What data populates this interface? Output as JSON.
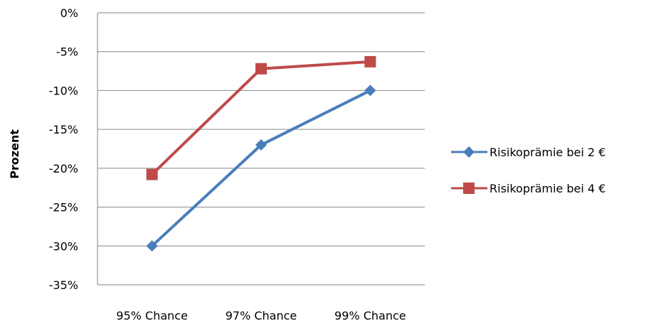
{
  "chart_data": {
    "type": "line",
    "categories": [
      "95% Chance",
      "97% Chance",
      "99% Chance"
    ],
    "series": [
      {
        "name": "Risikoprämie bei 2 €",
        "values": [
          -30,
          -17,
          -10
        ],
        "color": "#4a7ebb",
        "marker": "diamond"
      },
      {
        "name": "Risikoprämie bei 4 €",
        "values": [
          -20.8,
          -7.2,
          -6.3
        ],
        "color": "#be4b48",
        "marker": "square"
      }
    ],
    "ylabel": "Prozent",
    "ylim": [
      -35,
      0
    ],
    "yticks": [
      0,
      -5,
      -10,
      -15,
      -20,
      -25,
      -30,
      -35
    ],
    "ytick_labels": [
      "0%",
      "-5%",
      "-10%",
      "-15%",
      "-20%",
      "-25%",
      "-30%",
      "-35%"
    ],
    "grid": true,
    "legend_position": "right",
    "axis_color": "#868686"
  }
}
